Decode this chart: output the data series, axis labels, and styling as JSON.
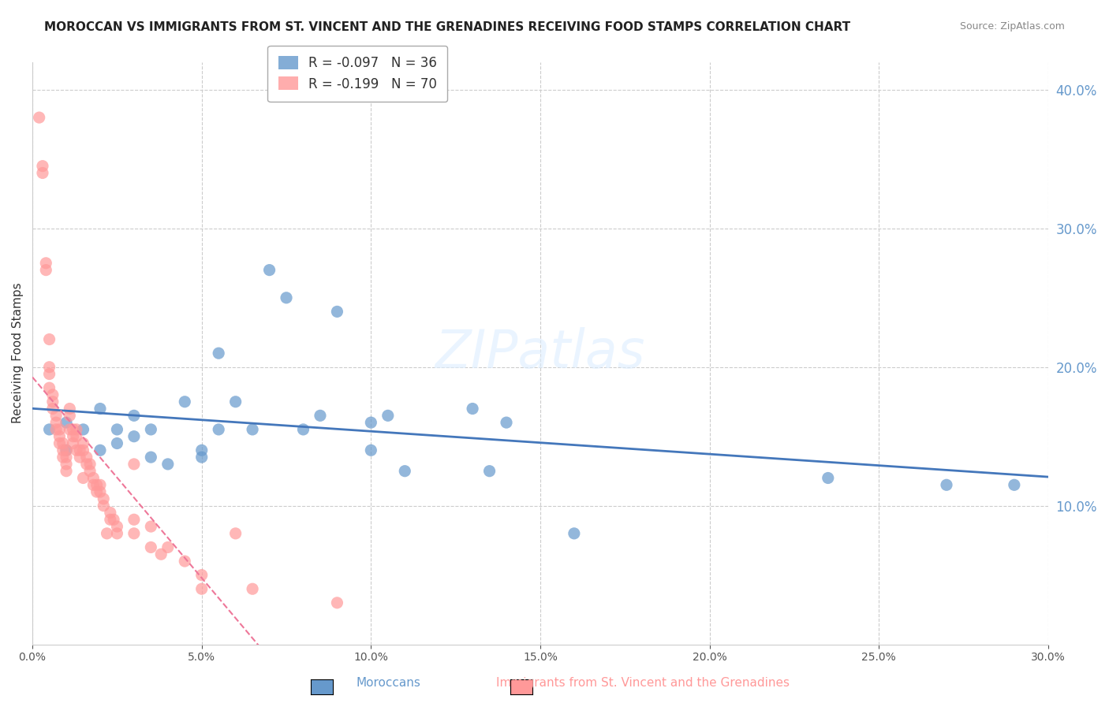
{
  "title": "MOROCCAN VS IMMIGRANTS FROM ST. VINCENT AND THE GRENADINES RECEIVING FOOD STAMPS CORRELATION CHART",
  "source": "Source: ZipAtlas.com",
  "xlabel": "",
  "ylabel": "Receiving Food Stamps",
  "xlim": [
    0.0,
    0.3
  ],
  "ylim": [
    0.0,
    0.42
  ],
  "xticks": [
    0.0,
    0.05,
    0.1,
    0.15,
    0.2,
    0.25,
    0.3
  ],
  "yticks_right": [
    0.1,
    0.2,
    0.3,
    0.4
  ],
  "blue_label": "Moroccans",
  "pink_label": "Immigrants from St. Vincent and the Grenadines",
  "blue_R": -0.097,
  "blue_N": 36,
  "pink_R": -0.199,
  "pink_N": 70,
  "blue_color": "#6699CC",
  "pink_color": "#FF9999",
  "blue_line_color": "#4477BB",
  "pink_line_color": "#EE7799",
  "watermark": "ZIPatlas",
  "blue_scatter_x": [
    0.005,
    0.01,
    0.01,
    0.015,
    0.02,
    0.02,
    0.025,
    0.025,
    0.03,
    0.03,
    0.035,
    0.035,
    0.04,
    0.045,
    0.05,
    0.05,
    0.055,
    0.055,
    0.06,
    0.065,
    0.07,
    0.075,
    0.08,
    0.085,
    0.09,
    0.1,
    0.1,
    0.105,
    0.11,
    0.13,
    0.135,
    0.14,
    0.16,
    0.235,
    0.27,
    0.29
  ],
  "blue_scatter_y": [
    0.155,
    0.14,
    0.16,
    0.155,
    0.14,
    0.17,
    0.145,
    0.155,
    0.15,
    0.165,
    0.135,
    0.155,
    0.13,
    0.175,
    0.14,
    0.135,
    0.21,
    0.155,
    0.175,
    0.155,
    0.27,
    0.25,
    0.155,
    0.165,
    0.24,
    0.14,
    0.16,
    0.165,
    0.125,
    0.17,
    0.125,
    0.16,
    0.08,
    0.12,
    0.115,
    0.115
  ],
  "pink_scatter_x": [
    0.002,
    0.003,
    0.003,
    0.004,
    0.004,
    0.005,
    0.005,
    0.005,
    0.005,
    0.006,
    0.006,
    0.006,
    0.007,
    0.007,
    0.007,
    0.008,
    0.008,
    0.008,
    0.009,
    0.009,
    0.009,
    0.01,
    0.01,
    0.01,
    0.01,
    0.011,
    0.011,
    0.011,
    0.012,
    0.012,
    0.012,
    0.013,
    0.013,
    0.013,
    0.014,
    0.014,
    0.015,
    0.015,
    0.015,
    0.016,
    0.016,
    0.017,
    0.017,
    0.018,
    0.018,
    0.019,
    0.019,
    0.02,
    0.02,
    0.021,
    0.021,
    0.022,
    0.023,
    0.023,
    0.024,
    0.025,
    0.025,
    0.03,
    0.03,
    0.03,
    0.035,
    0.035,
    0.038,
    0.04,
    0.045,
    0.05,
    0.05,
    0.06,
    0.065,
    0.09
  ],
  "pink_scatter_y": [
    0.38,
    0.345,
    0.34,
    0.275,
    0.27,
    0.22,
    0.2,
    0.195,
    0.185,
    0.18,
    0.175,
    0.17,
    0.165,
    0.16,
    0.155,
    0.155,
    0.15,
    0.145,
    0.145,
    0.14,
    0.135,
    0.14,
    0.135,
    0.13,
    0.125,
    0.17,
    0.165,
    0.155,
    0.155,
    0.15,
    0.145,
    0.155,
    0.15,
    0.14,
    0.14,
    0.135,
    0.145,
    0.14,
    0.12,
    0.135,
    0.13,
    0.13,
    0.125,
    0.12,
    0.115,
    0.115,
    0.11,
    0.115,
    0.11,
    0.105,
    0.1,
    0.08,
    0.095,
    0.09,
    0.09,
    0.085,
    0.08,
    0.13,
    0.09,
    0.08,
    0.085,
    0.07,
    0.065,
    0.07,
    0.06,
    0.05,
    0.04,
    0.08,
    0.04,
    0.03
  ]
}
